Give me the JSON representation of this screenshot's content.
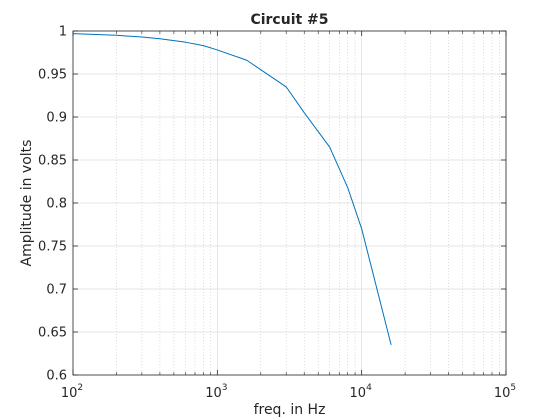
{
  "chart_data": {
    "type": "line",
    "title": "Circuit #5",
    "xlabel": "freq. in Hz",
    "ylabel": "Amplitude in volts",
    "xscale": "log",
    "xlim": [
      100,
      100000
    ],
    "ylim": [
      0.6,
      1.0
    ],
    "grid": true,
    "minor_grid": true,
    "x_ticks": [
      {
        "base": "10",
        "exp": "2"
      },
      {
        "base": "10",
        "exp": "3"
      },
      {
        "base": "10",
        "exp": "4"
      },
      {
        "base": "10",
        "exp": "5"
      }
    ],
    "y_ticks": [
      "0.6",
      "0.65",
      "0.7",
      "0.75",
      "0.8",
      "0.85",
      "0.9",
      "0.95",
      "1"
    ],
    "series": [
      {
        "color": "#0072bd",
        "x": [
          100,
          200,
          300,
          400,
          600,
          800,
          1000,
          1600,
          3000,
          4000,
          6000,
          8000,
          10000,
          16000
        ],
        "y": [
          0.997,
          0.995,
          0.993,
          0.991,
          0.987,
          0.983,
          0.978,
          0.966,
          0.935,
          0.905,
          0.865,
          0.818,
          0.77,
          0.635
        ]
      }
    ]
  }
}
